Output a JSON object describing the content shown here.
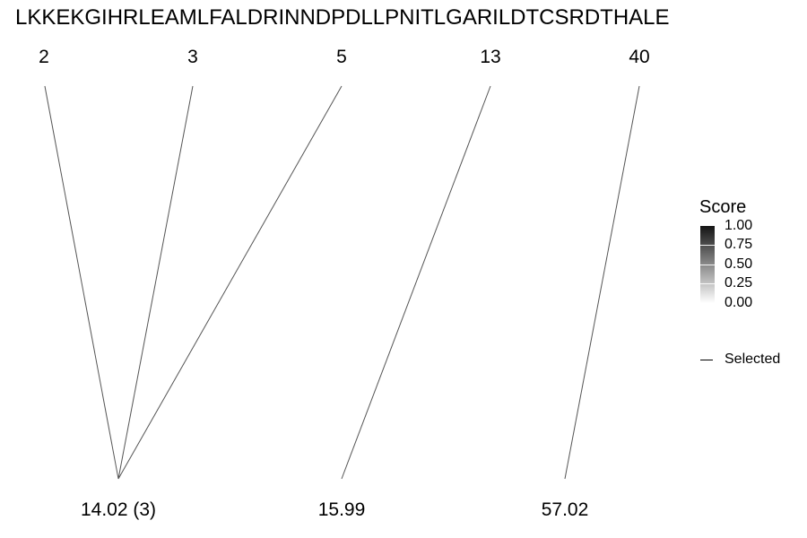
{
  "sequence": "LKKEKGIHRLEAMLFALDRINNDPDLLPNITLGARILDTCSRDTHALE",
  "top_labels": [
    "2",
    "3",
    "5",
    "13",
    "40"
  ],
  "bottom_labels": [
    "14.02 (3)",
    "15.99",
    "57.02"
  ],
  "links": [
    {
      "from": "2",
      "to": "14.02 (3)"
    },
    {
      "from": "3",
      "to": "14.02 (3)"
    },
    {
      "from": "5",
      "to": "14.02 (3)"
    },
    {
      "from": "13",
      "to": "15.99"
    },
    {
      "from": "40",
      "to": "57.02"
    }
  ],
  "legend": {
    "title": "Score",
    "ticks": [
      "1.00",
      "0.75",
      "0.50",
      "0.25",
      "0.00"
    ],
    "gradient_colors": [
      "#141414",
      "#ffffff"
    ],
    "line_label": "Selected",
    "line_color": "#555555"
  }
}
